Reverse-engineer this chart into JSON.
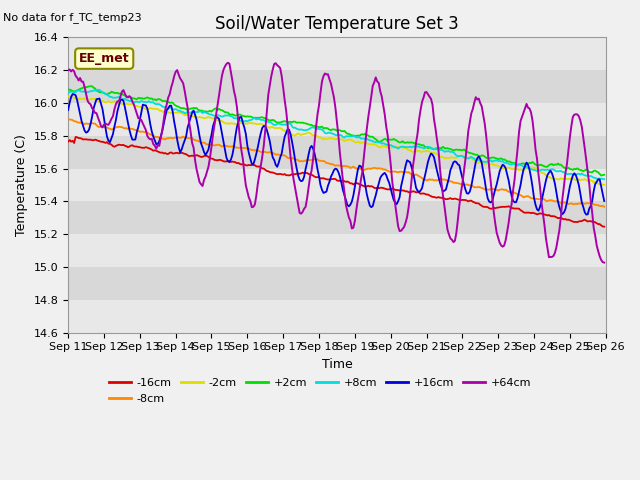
{
  "title": "Soil/Water Temperature Set 3",
  "no_data_text": "No data for f_TC_temp23",
  "legend_label_text": "EE_met",
  "xlabel": "Time",
  "ylabel": "Temperature (C)",
  "ylim": [
    14.6,
    16.4
  ],
  "x_tick_labels": [
    "Sep 11",
    "Sep 12",
    "Sep 13",
    "Sep 14",
    "Sep 15",
    "Sep 16",
    "Sep 17",
    "Sep 18",
    "Sep 19",
    "Sep 20",
    "Sep 21",
    "Sep 22",
    "Sep 23",
    "Sep 24",
    "Sep 25",
    "Sep 26"
  ],
  "series_colors": {
    "-16cm": "#dd0000",
    "-8cm": "#ff8800",
    "-2cm": "#dddd00",
    "+2cm": "#00dd00",
    "+8cm": "#00dddd",
    "+16cm": "#0000dd",
    "+64cm": "#aa00aa"
  },
  "title_fontsize": 12,
  "axis_fontsize": 9,
  "tick_fontsize": 8,
  "fig_bg": "#f0f0f0",
  "plot_bg_light": "#e8e8e8",
  "plot_bg_dark": "#d8d8d8"
}
